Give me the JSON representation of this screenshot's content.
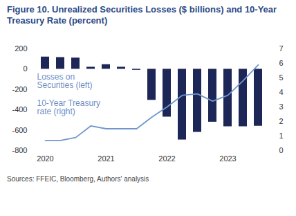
{
  "chart_data": {
    "type": "bar",
    "title": "Figure 10. Unrealized Securities Losses ($ billions) and 10-Year Treasury Rate (percent)",
    "caption": "Sources: FFEIC, Bloomberg, Authors' analysis",
    "categories": [
      "2020",
      null,
      null,
      null,
      "2021",
      null,
      null,
      null,
      "2022",
      null,
      null,
      null,
      "2023",
      null,
      null
    ],
    "series": [
      {
        "name": "Losses on Securities (left)",
        "type": "bar",
        "color": "#1c2657",
        "values": [
          120,
          115,
          110,
          20,
          45,
          20,
          -10,
          -305,
          -470,
          -695,
          -620,
          -520,
          -565,
          -565,
          -560
        ]
      },
      {
        "name": "10-Year Treasury rate (right)",
        "type": "line",
        "axis": "y2",
        "color": "#7096cc",
        "values": [
          0.7,
          0.7,
          0.9,
          1.7,
          1.5,
          1.5,
          1.5,
          2.3,
          3.0,
          3.8,
          3.9,
          3.4,
          3.8,
          4.8,
          5.9
        ]
      }
    ],
    "ylim": [
      -800,
      200
    ],
    "yticks": [
      -800,
      -600,
      -400,
      -200,
      0,
      200
    ],
    "y2lim": [
      0,
      7
    ],
    "y2ticks": [
      0,
      1,
      2,
      3,
      4,
      5,
      6,
      7
    ]
  }
}
